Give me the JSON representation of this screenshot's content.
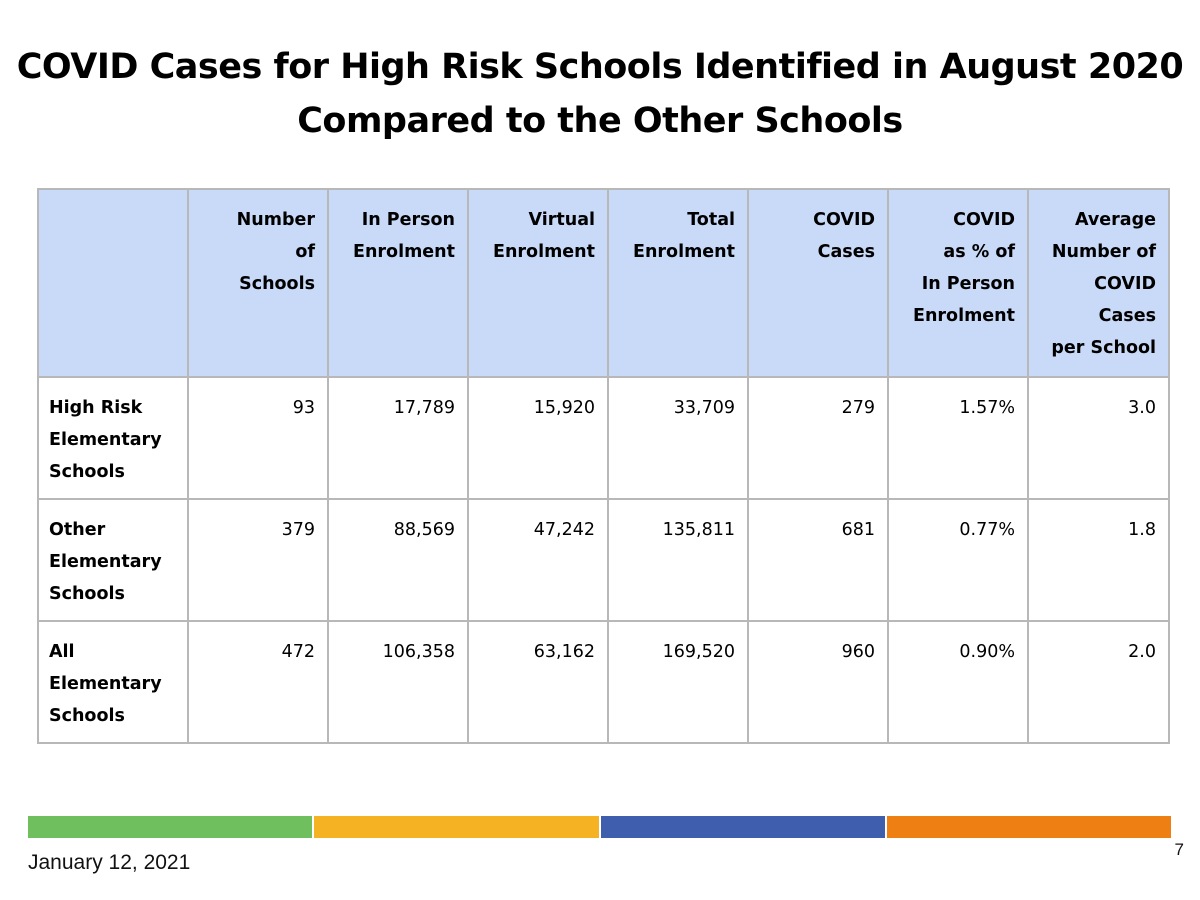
{
  "slide": {
    "title_line1": "COVID Cases for High Risk Schools Identified in August 2020",
    "title_line2": "Compared to the Other Schools",
    "date": "January 12,  2021",
    "page_number": "7"
  },
  "table": {
    "header_bg": "#c9daf8",
    "columns": [
      {
        "lines": [
          ""
        ]
      },
      {
        "lines": [
          "Number",
          "of",
          "Schools"
        ]
      },
      {
        "lines": [
          "In Person",
          "Enrolment"
        ]
      },
      {
        "lines": [
          "Virtual",
          "Enrolment"
        ]
      },
      {
        "lines": [
          "Total",
          "Enrolment"
        ]
      },
      {
        "lines": [
          "COVID",
          "Cases"
        ]
      },
      {
        "lines": [
          "COVID",
          "as % of",
          "In Person",
          "Enrolment"
        ]
      },
      {
        "lines": [
          "Average",
          "Number of",
          "COVID",
          "Cases",
          "per School"
        ]
      }
    ],
    "rows": [
      {
        "label_lines": [
          "High Risk",
          "Elementary",
          "Schools"
        ],
        "values": [
          "93",
          "17,789",
          "15,920",
          "33,709",
          "279",
          "1.57%",
          "3.0"
        ]
      },
      {
        "label_lines": [
          "Other",
          "Elementary",
          "Schools"
        ],
        "values": [
          "379",
          "88,569",
          "47,242",
          "135,811",
          "681",
          "0.77%",
          "1.8"
        ]
      },
      {
        "label_lines": [
          "All",
          "Elementary",
          "Schools"
        ],
        "values": [
          "472",
          "106,358",
          "63,162",
          "169,520",
          "960",
          "0.90%",
          "2.0"
        ]
      }
    ]
  },
  "footer_bar_colors": [
    "#6fbf5f",
    "#f5b324",
    "#3f5fae",
    "#ee7f12"
  ]
}
